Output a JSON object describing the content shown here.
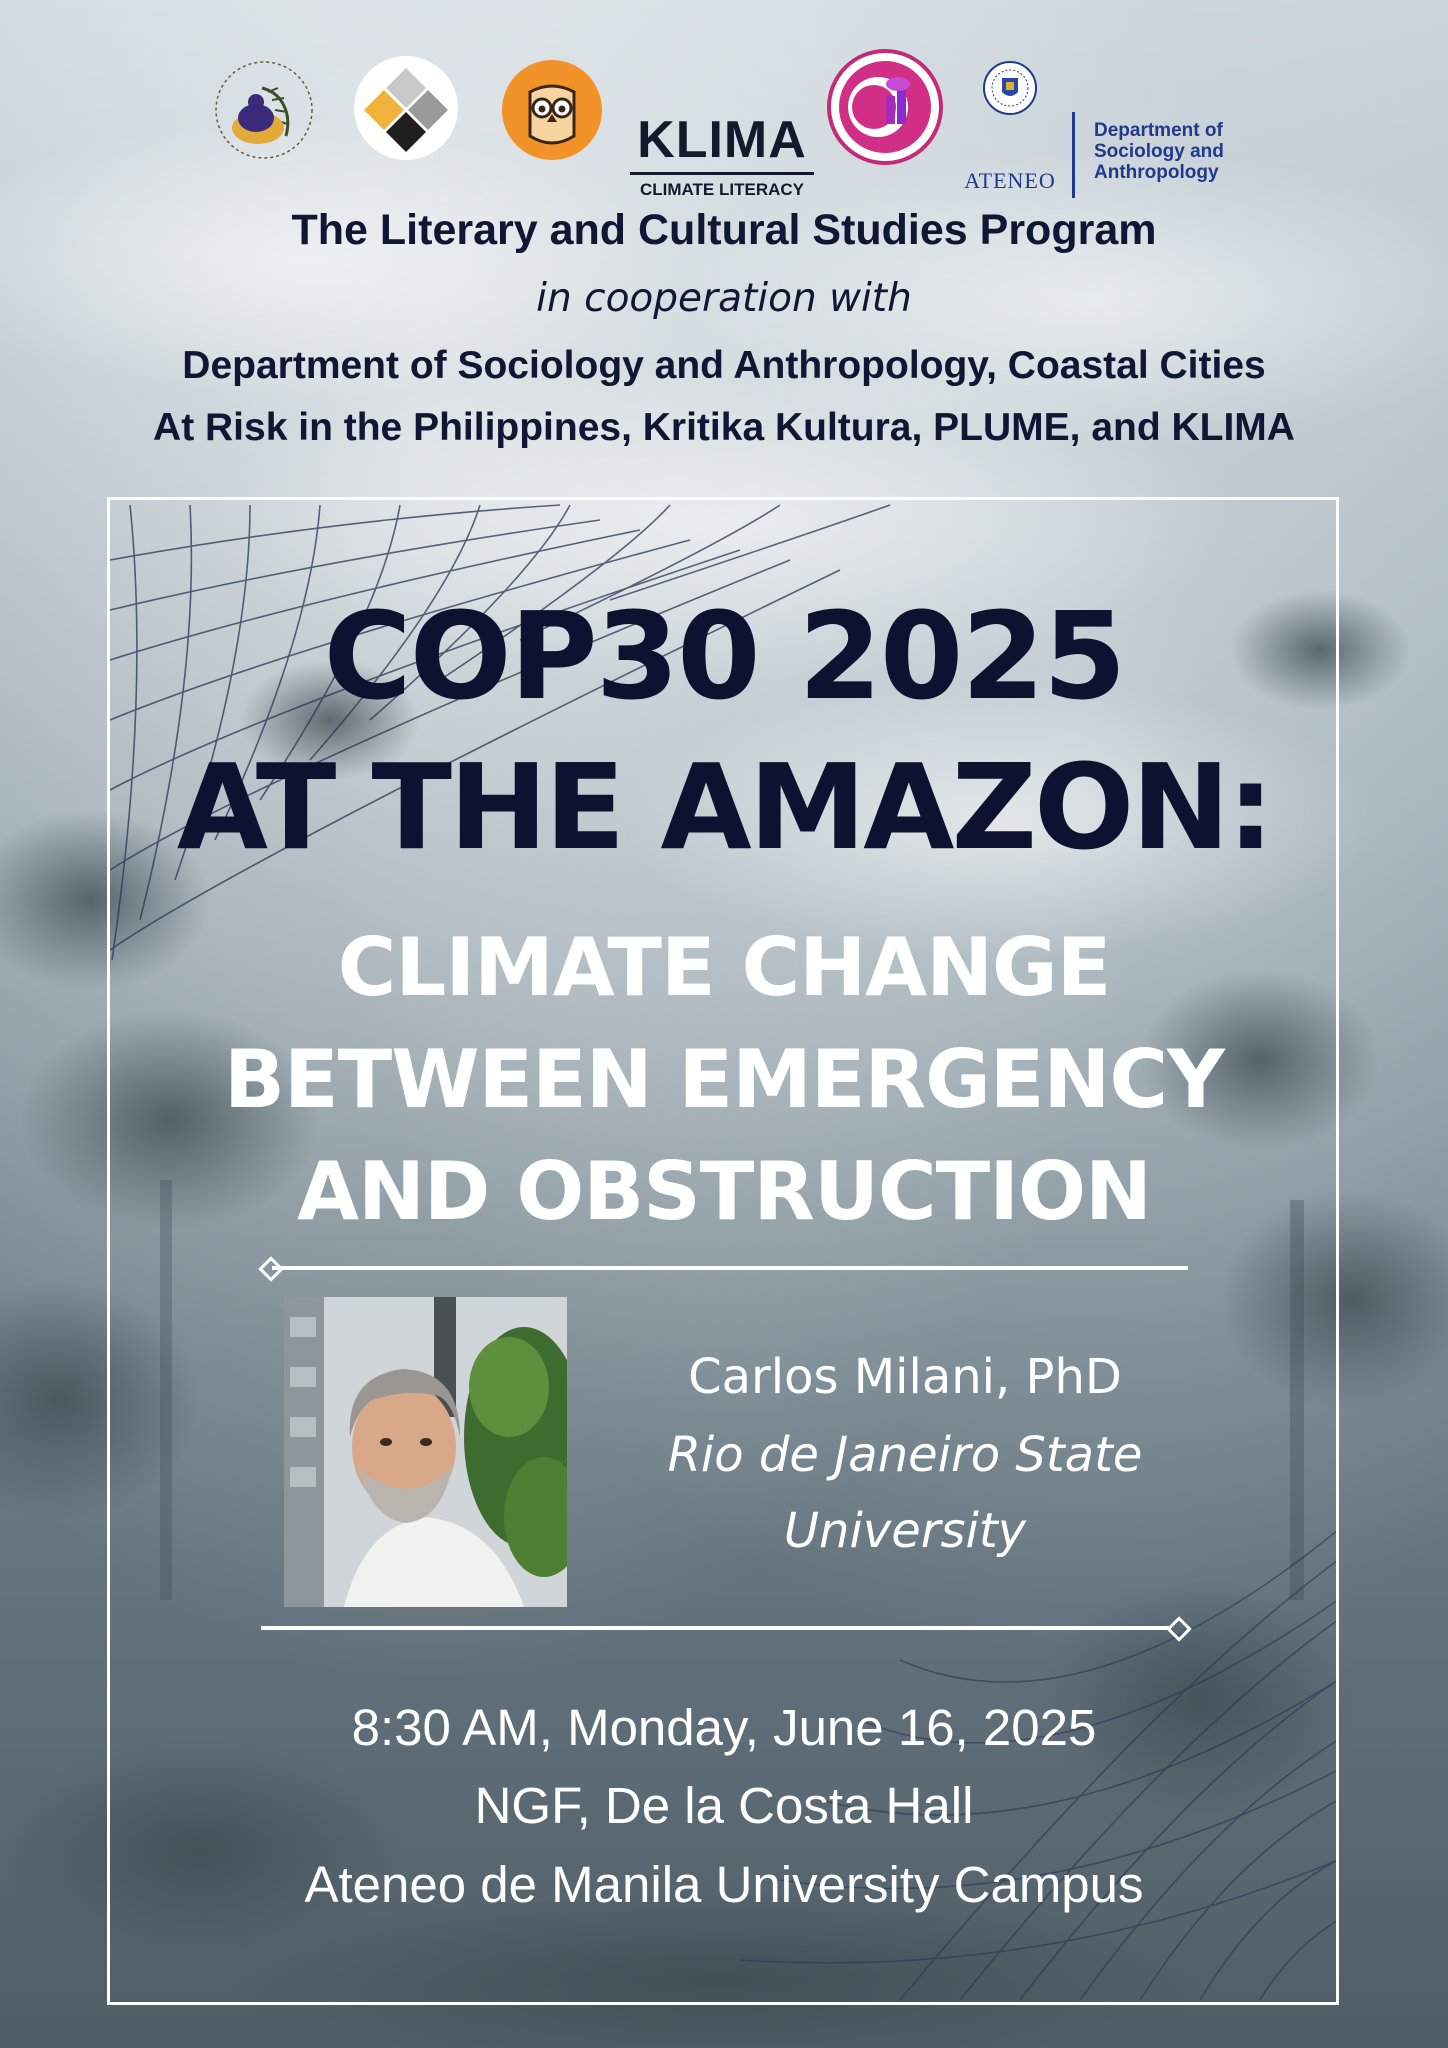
{
  "logos": {
    "klima_word": "KLIMA",
    "klima_sub": "CLIMATE LITERACY",
    "ateneo_word": "ATENEO",
    "dept_lines": [
      "Department of",
      "Sociology and",
      "Anthropology"
    ],
    "items": [
      "lcs-program-logo",
      "kritika-kultura-logo",
      "plume-owl-logo",
      "klima-logo",
      "coastal-cities-logo",
      "ateneo-seal-logo"
    ]
  },
  "organizers": {
    "program": "The Literary and Cultural Studies Program",
    "cooperation": "in cooperation with",
    "partners_line1": "Department of Sociology and Anthropology, Coastal Cities",
    "partners_line2": "At Risk in the Philippines, Kritika Kultura, PLUME, and KLIMA"
  },
  "title": {
    "line1": "COP30 2025",
    "line2": "AT THE AMAZON:"
  },
  "subtitle": {
    "line1": "CLIMATE CHANGE",
    "line2": "BETWEEN EMERGENCY",
    "line3": "AND OBSTRUCTION"
  },
  "speaker": {
    "name": "Carlos Milani, PhD",
    "affiliation_line1": "Rio de Janeiro State",
    "affiliation_line2": "University"
  },
  "event": {
    "datetime": "8:30 AM, Monday, June 16, 2025",
    "venue": "NGF, De la Costa Hall",
    "campus": "Ateneo de Manila University Campus"
  },
  "colors": {
    "title_navy": "#0d1230",
    "sponsor_navy": "#101634",
    "dept_blue": "#1f3a8a",
    "frame_white": "#ffffff"
  }
}
